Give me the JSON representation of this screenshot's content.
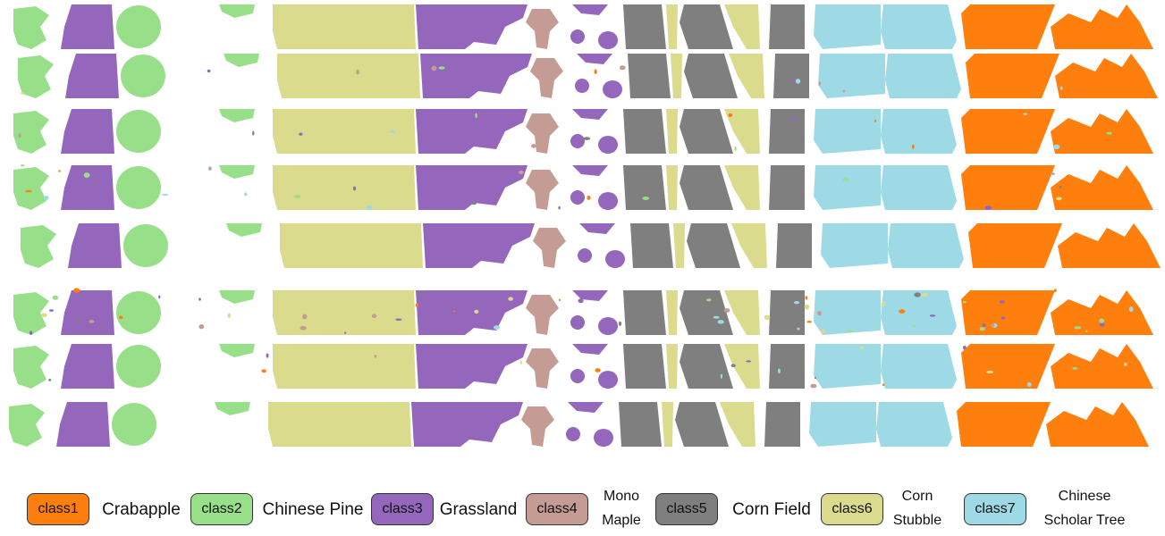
{
  "legend": [
    {
      "swatch": "class1",
      "name": "Crabapple",
      "color": "#ff7f0e"
    },
    {
      "swatch": "class2",
      "name": "Chinese Pine",
      "color": "#98df8a"
    },
    {
      "swatch": "class3",
      "name": "Grassland",
      "color": "#9467bd"
    },
    {
      "swatch": "class4",
      "name": "Mono\nMaple",
      "color": "#c49c94"
    },
    {
      "swatch": "class5",
      "name": "Corn Field",
      "color": "#7f7f7f"
    },
    {
      "swatch": "class6",
      "name": "Corn\nStubble",
      "color": "#dbdb8d"
    },
    {
      "swatch": "class7",
      "name": "Chinese\nScholar Tree",
      "color": "#9edae5"
    }
  ]
}
